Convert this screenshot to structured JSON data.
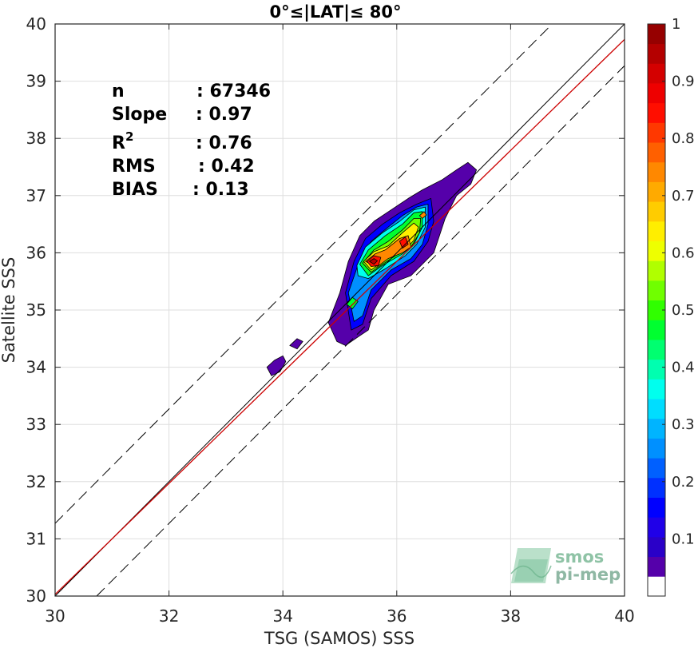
{
  "chart_data": {
    "type": "scatter",
    "title": "0°≤|LAT|≤ 80°",
    "xlabel": "TSG (SAMOS) SSS",
    "ylabel": "Satellite SSS",
    "xlim": [
      30,
      40
    ],
    "ylim": [
      30,
      40
    ],
    "x_ticks": [
      "30",
      "32",
      "34",
      "36",
      "38",
      "40"
    ],
    "y_ticks": [
      "30",
      "31",
      "32",
      "33",
      "34",
      "35",
      "36",
      "37",
      "38",
      "39",
      "40"
    ],
    "grid": true,
    "stats": [
      {
        "name": "n",
        "label": "n",
        "value": ": 67346"
      },
      {
        "name": "slope",
        "label": "Slope",
        "value": ": 0.97"
      },
      {
        "name": "r2",
        "label": "R",
        "sup": "2",
        "value": ": 0.76"
      },
      {
        "name": "rms",
        "label": "RMS",
        "value": ": 0.42"
      },
      {
        "name": "bias",
        "label": "BIAS",
        "value": ": 0.13"
      }
    ],
    "reference_lines": {
      "identity": {
        "points": [
          [
            30,
            30
          ],
          [
            40,
            40
          ]
        ],
        "color": "#000000"
      },
      "regression": {
        "points": [
          [
            30,
            30.03
          ],
          [
            40,
            39.73
          ]
        ],
        "color": "#cc0000"
      },
      "upper_bound": {
        "points": [
          [
            30,
            31.27
          ],
          [
            40,
            41.27
          ]
        ],
        "style": "dashed"
      },
      "lower_bound": {
        "points": [
          [
            30.73,
            30
          ],
          [
            40,
            39.27
          ]
        ],
        "style": "dashed"
      }
    },
    "density_contours": [
      {
        "level": 0.05,
        "polygon": [
          [
            35.0,
            35.3
          ],
          [
            35.15,
            35.85
          ],
          [
            35.35,
            36.3
          ],
          [
            35.6,
            36.55
          ],
          [
            35.9,
            36.75
          ],
          [
            36.2,
            36.95
          ],
          [
            36.45,
            37.1
          ],
          [
            36.8,
            37.28
          ],
          [
            37.05,
            37.45
          ],
          [
            37.25,
            37.58
          ],
          [
            37.4,
            37.45
          ],
          [
            37.3,
            37.2
          ],
          [
            37.05,
            37.0
          ],
          [
            36.85,
            36.6
          ],
          [
            36.75,
            36.3
          ],
          [
            36.65,
            36.0
          ],
          [
            36.25,
            35.6
          ],
          [
            35.85,
            35.45
          ],
          [
            35.6,
            35.0
          ],
          [
            35.5,
            34.65
          ],
          [
            35.35,
            34.55
          ],
          [
            35.1,
            34.38
          ],
          [
            34.95,
            34.45
          ],
          [
            34.8,
            34.78
          ]
        ]
      },
      {
        "level": 0.05,
        "polygon": [
          [
            33.72,
            34.0
          ],
          [
            33.85,
            34.12
          ],
          [
            34.0,
            34.2
          ],
          [
            34.05,
            34.1
          ],
          [
            33.95,
            33.92
          ],
          [
            33.8,
            33.85
          ]
        ]
      },
      {
        "level": 0.05,
        "polygon": [
          [
            34.12,
            34.38
          ],
          [
            34.25,
            34.5
          ],
          [
            34.35,
            34.45
          ],
          [
            34.25,
            34.32
          ]
        ]
      },
      {
        "level": 0.15,
        "polygon": [
          [
            35.1,
            35.3
          ],
          [
            35.25,
            35.85
          ],
          [
            35.45,
            36.25
          ],
          [
            35.75,
            36.5
          ],
          [
            36.05,
            36.7
          ],
          [
            36.35,
            36.85
          ],
          [
            36.6,
            36.95
          ],
          [
            36.65,
            36.55
          ],
          [
            36.55,
            36.2
          ],
          [
            36.3,
            35.85
          ],
          [
            35.9,
            35.6
          ],
          [
            35.55,
            35.2
          ],
          [
            35.4,
            34.75
          ],
          [
            35.2,
            34.65
          ]
        ]
      },
      {
        "level": 0.25,
        "polygon": [
          [
            35.15,
            35.3
          ],
          [
            35.35,
            35.88
          ],
          [
            35.55,
            36.2
          ],
          [
            35.85,
            36.45
          ],
          [
            36.1,
            36.65
          ],
          [
            36.35,
            36.8
          ],
          [
            36.55,
            36.85
          ],
          [
            36.55,
            36.5
          ],
          [
            36.45,
            36.15
          ],
          [
            36.25,
            35.9
          ],
          [
            35.9,
            35.7
          ],
          [
            35.55,
            35.35
          ],
          [
            35.4,
            34.9
          ],
          [
            35.25,
            34.8
          ]
        ]
      },
      {
        "level": 0.35,
        "polygon": [
          [
            35.3,
            35.78
          ],
          [
            35.45,
            36.1
          ],
          [
            35.75,
            36.35
          ],
          [
            36.05,
            36.55
          ],
          [
            36.3,
            36.75
          ],
          [
            36.5,
            36.8
          ],
          [
            36.5,
            36.45
          ],
          [
            36.35,
            36.15
          ],
          [
            36.15,
            35.95
          ],
          [
            35.8,
            35.72
          ],
          [
            35.5,
            35.55
          ],
          [
            35.32,
            35.6
          ]
        ]
      },
      {
        "level": 0.45,
        "polygon": [
          [
            35.35,
            35.8
          ],
          [
            35.5,
            36.05
          ],
          [
            35.8,
            36.3
          ],
          [
            36.1,
            36.5
          ],
          [
            36.3,
            36.7
          ],
          [
            36.45,
            36.72
          ],
          [
            36.45,
            36.45
          ],
          [
            36.3,
            36.15
          ],
          [
            36.1,
            35.98
          ],
          [
            35.75,
            35.78
          ],
          [
            35.5,
            35.6
          ]
        ]
      },
      {
        "level": 0.45,
        "polygon": [
          [
            35.12,
            35.1
          ],
          [
            35.22,
            35.22
          ],
          [
            35.32,
            35.15
          ],
          [
            35.22,
            35.02
          ]
        ]
      },
      {
        "level": 0.55,
        "polygon": [
          [
            35.4,
            35.82
          ],
          [
            35.6,
            36.05
          ],
          [
            35.85,
            36.2
          ],
          [
            36.1,
            36.4
          ],
          [
            36.3,
            36.6
          ],
          [
            36.42,
            36.6
          ],
          [
            36.4,
            36.35
          ],
          [
            36.25,
            36.1
          ],
          [
            36.05,
            36.0
          ],
          [
            35.75,
            35.8
          ],
          [
            35.55,
            35.66
          ]
        ]
      },
      {
        "level": 0.65,
        "polygon": [
          [
            35.42,
            35.85
          ],
          [
            35.6,
            36.02
          ],
          [
            35.85,
            36.12
          ],
          [
            36.1,
            36.35
          ],
          [
            36.3,
            36.52
          ],
          [
            36.38,
            36.45
          ],
          [
            36.3,
            36.22
          ],
          [
            36.15,
            36.05
          ],
          [
            35.95,
            35.98
          ],
          [
            35.72,
            35.82
          ],
          [
            35.55,
            35.7
          ]
        ]
      },
      {
        "level": 0.75,
        "polygon": [
          [
            35.45,
            35.85
          ],
          [
            35.62,
            35.98
          ],
          [
            35.8,
            36.05
          ],
          [
            36.05,
            36.25
          ],
          [
            36.2,
            36.3
          ],
          [
            36.25,
            36.1
          ],
          [
            36.1,
            36.0
          ],
          [
            35.85,
            35.9
          ],
          [
            35.65,
            35.75
          ]
        ]
      },
      {
        "level": 0.85,
        "polygon": [
          [
            35.48,
            35.85
          ],
          [
            35.6,
            35.95
          ],
          [
            35.72,
            35.92
          ],
          [
            35.68,
            35.78
          ],
          [
            35.55,
            35.76
          ]
        ]
      },
      {
        "level": 0.85,
        "polygon": [
          [
            36.05,
            36.2
          ],
          [
            36.15,
            36.28
          ],
          [
            36.2,
            36.15
          ],
          [
            36.1,
            36.08
          ]
        ]
      },
      {
        "level": 0.95,
        "polygon": [
          [
            35.52,
            35.85
          ],
          [
            35.6,
            35.9
          ],
          [
            35.66,
            35.86
          ],
          [
            35.6,
            35.8
          ]
        ]
      },
      {
        "level": 0.75,
        "polygon": [
          [
            36.4,
            36.65
          ],
          [
            36.48,
            36.72
          ],
          [
            36.52,
            36.66
          ],
          [
            36.45,
            36.6
          ]
        ]
      }
    ],
    "colorbar": {
      "range": [
        0,
        1
      ],
      "ticks": [
        "0.1",
        "0.2",
        "0.3",
        "0.4",
        "0.5",
        "0.6",
        "0.7",
        "0.8",
        "0.9",
        "1"
      ],
      "colors": [
        "#ffffff",
        "#5500aa",
        "#2a00c8",
        "#2000e8",
        "#0000ff",
        "#0030ff",
        "#0060ff",
        "#0090ff",
        "#00b4ff",
        "#00ddff",
        "#00ffee",
        "#00ffb0",
        "#00ff70",
        "#00ff30",
        "#30ff00",
        "#70ff00",
        "#b0ff00",
        "#eeff00",
        "#ffee00",
        "#ffcc00",
        "#ffaa00",
        "#ff8800",
        "#ff6000",
        "#ff3800",
        "#ff0e00",
        "#ee0000",
        "#d40000",
        "#b40000",
        "#960000"
      ]
    }
  },
  "logo": {
    "line1": "smos",
    "line2": "pi-mep"
  }
}
